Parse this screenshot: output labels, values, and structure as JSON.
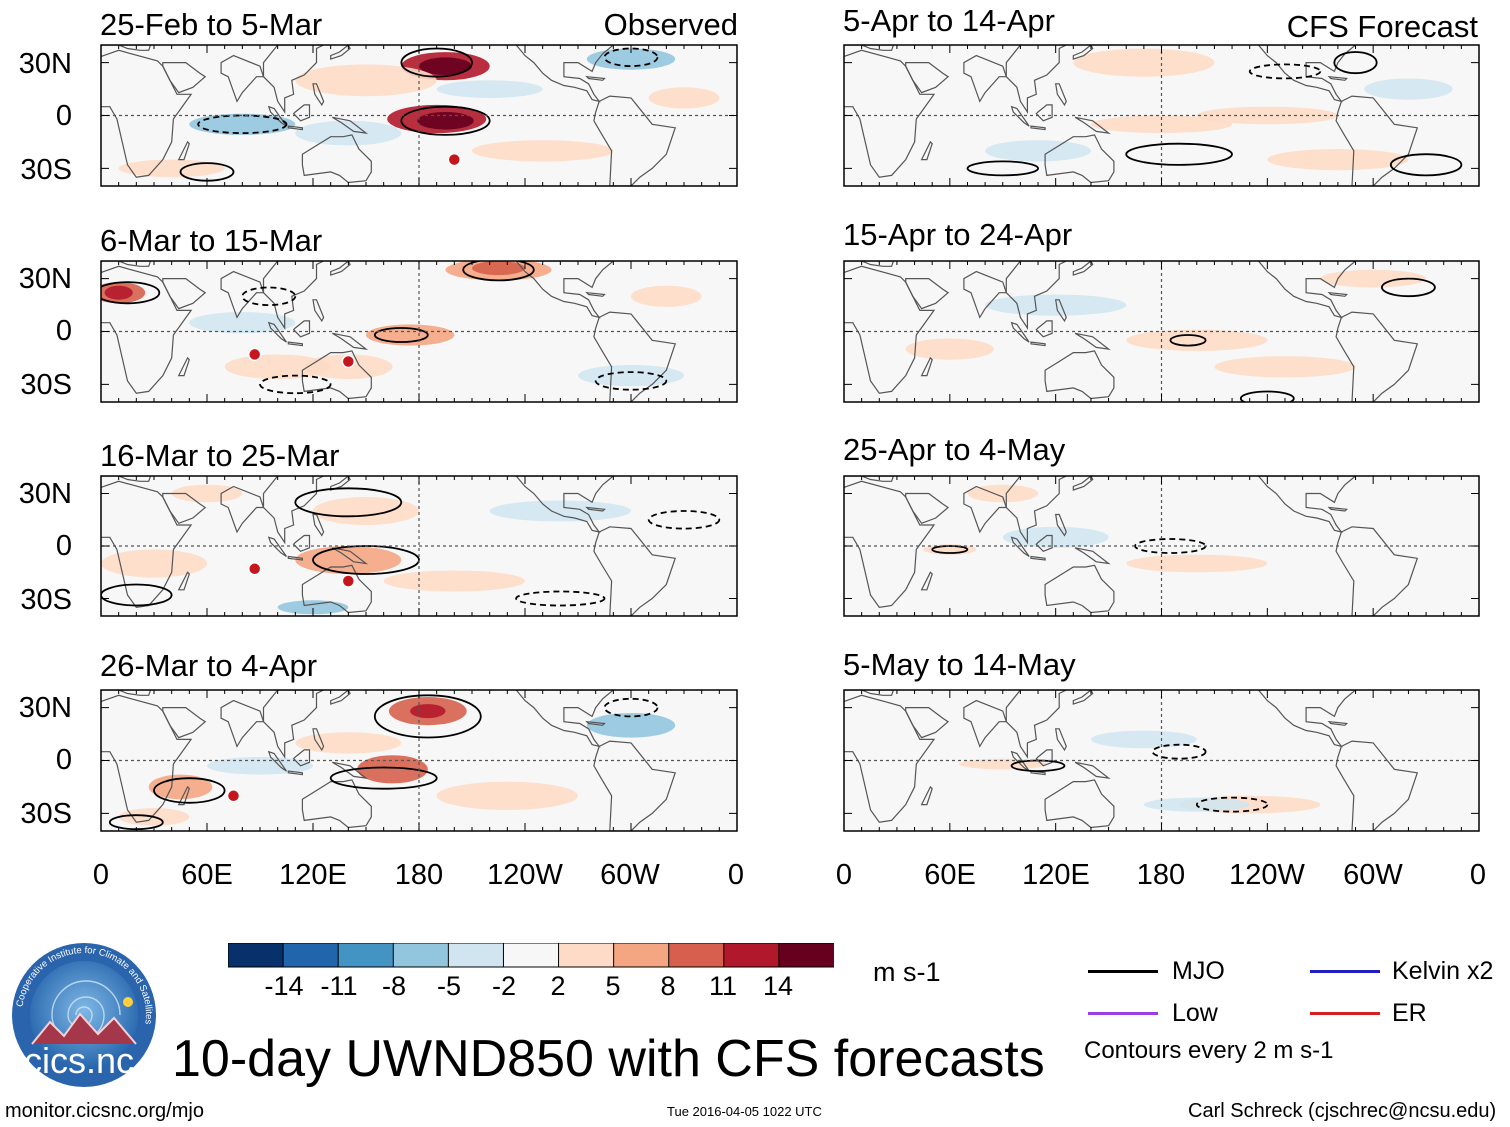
{
  "panels": [
    {
      "title": "25-Feb to 5-Mar",
      "label": "Observed",
      "column": "left"
    },
    {
      "title": "6-Mar to 15-Mar",
      "label": "",
      "column": "left"
    },
    {
      "title": "16-Mar to 25-Mar",
      "label": "",
      "column": "left"
    },
    {
      "title": "26-Mar to 4-Apr",
      "label": "",
      "column": "left"
    },
    {
      "title": "5-Apr to 14-Apr",
      "label": "CFS Forecast",
      "column": "right"
    },
    {
      "title": "15-Apr to 24-Apr",
      "label": "",
      "column": "right"
    },
    {
      "title": "25-Apr to 4-May",
      "label": "",
      "column": "right"
    },
    {
      "title": "5-May to 14-May",
      "label": "",
      "column": "right"
    }
  ],
  "lat_labels": [
    "30N",
    "0",
    "30S"
  ],
  "lon_labels": [
    "0",
    "60E",
    "120E",
    "180",
    "120W",
    "60W",
    "0"
  ],
  "colorbar": {
    "colors": [
      "#08306b",
      "#2166ac",
      "#4393c3",
      "#92c5de",
      "#d1e5f0",
      "#f7f7f7",
      "#fddbc7",
      "#f4a582",
      "#d6604d",
      "#b2182b",
      "#67001f"
    ],
    "labels": [
      "-14",
      "-11",
      "-8",
      "-5",
      "-2",
      "2",
      "5",
      "8",
      "11",
      "14"
    ],
    "units": "m s-1"
  },
  "legend": {
    "items": [
      {
        "name": "MJO",
        "color": "#000000"
      },
      {
        "name": "Kelvin x2",
        "color": "#1f1fbf"
      },
      {
        "name": "Low",
        "color": "#9b3fe0"
      },
      {
        "name": "ER",
        "color": "#d62020"
      }
    ],
    "contour_note": "Contours every 2 m s-1"
  },
  "logo_text": "cics.nc",
  "logo_ring_text": "Cooperative Institute for Climate and Satellites",
  "main_title": "10-day UWND850 with CFS forecasts",
  "footer": {
    "url": "monitor.cicsnc.org/mjo",
    "timestamp": "Tue 2016-04-05 1022 UTC",
    "author": "Carl Schreck (cjschrec@ncsu.edu)"
  }
}
